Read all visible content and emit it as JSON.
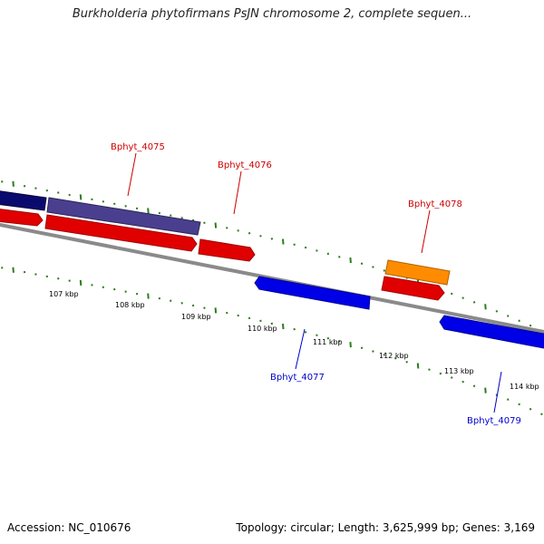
{
  "title": "Burkholderia phytofirmans PsJN chromosome 2, complete sequen...",
  "footer": {
    "accession": "Accession: NC_010676",
    "summary": "Topology: circular; Length: 3,625,999 bp; Genes: 3,169"
  },
  "colors": {
    "backbone": "#8a8a8a",
    "tick": "#2e7d1e",
    "forward_label": "#cc0000",
    "reverse_label": "#0000cc"
  },
  "scale_labels": [
    "107 kbp",
    "108 kbp",
    "109 kbp",
    "110 kbp",
    "111 kbp",
    "112 kbp",
    "113 kbp",
    "114 kbp"
  ],
  "features": [
    {
      "name": "",
      "strand": "+",
      "type": "cds",
      "color": "#e00000"
    },
    {
      "name": "",
      "strand": "+",
      "type": "gene",
      "color": "#0a0a6e"
    },
    {
      "name": "Bphyt_4075",
      "strand": "+",
      "type": "cds",
      "color": "#e00000"
    },
    {
      "name": "Bphyt_4075",
      "strand": "+",
      "type": "gene",
      "color": "#4a3f8f"
    },
    {
      "name": "Bphyt_4076",
      "strand": "+",
      "type": "cds",
      "color": "#e00000"
    },
    {
      "name": "Bphyt_4077",
      "strand": "-",
      "type": "cds",
      "color": "#0000e6"
    },
    {
      "name": "Bphyt_4078",
      "strand": "+",
      "type": "cds",
      "color": "#e00000"
    },
    {
      "name": "Bphyt_4078",
      "strand": "+",
      "type": "gene",
      "color": "#ff8c00"
    },
    {
      "name": "Bphyt_4079",
      "strand": "-",
      "type": "cds",
      "color": "#0000e6"
    }
  ],
  "gene_labels": [
    {
      "text": "Bphyt_4075",
      "strand": "+"
    },
    {
      "text": "Bphyt_4076",
      "strand": "+"
    },
    {
      "text": "Bphyt_4077",
      "strand": "-"
    },
    {
      "text": "Bphyt_4078",
      "strand": "+"
    },
    {
      "text": "Bphyt_4079",
      "strand": "-"
    }
  ]
}
